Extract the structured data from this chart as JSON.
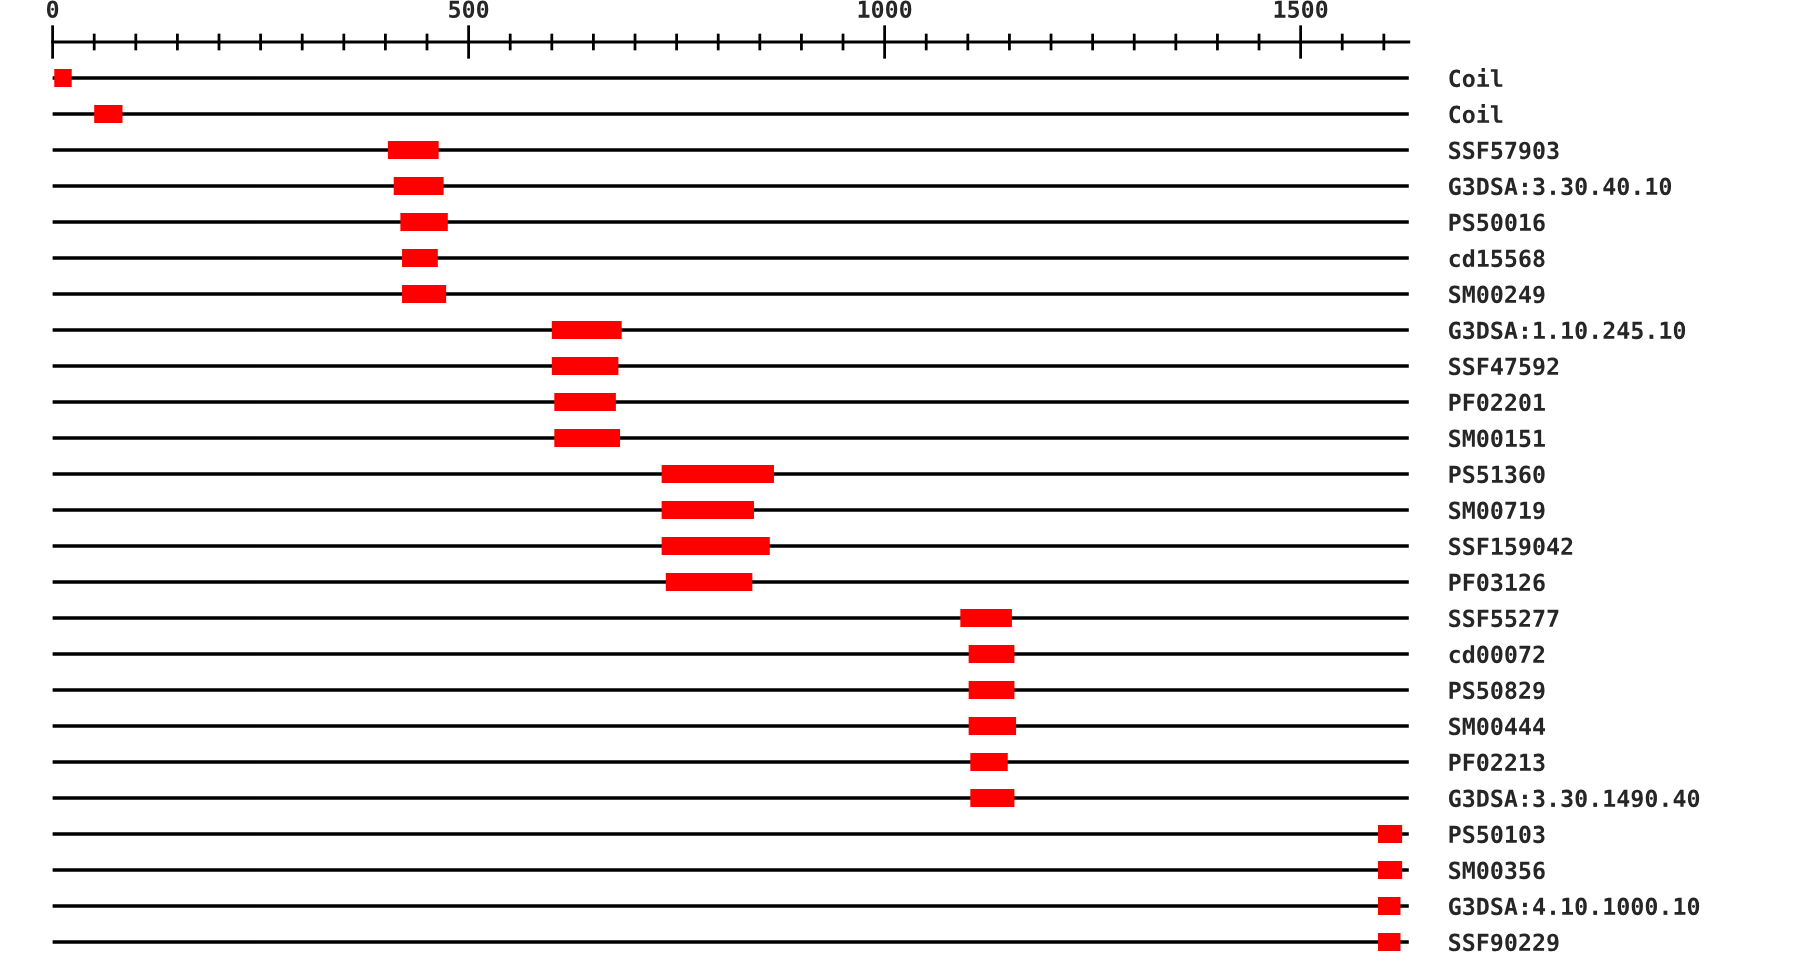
{
  "chart_data": {
    "type": "bar",
    "orientation": "horizontal",
    "categories": [
      "Coil",
      "Coil",
      "SSF57903",
      "G3DSA:3.30.40.10",
      "PS50016",
      "cd15568",
      "SM00249",
      "G3DSA:1.10.245.10",
      "SSF47592",
      "PF02201",
      "SM00151",
      "PS51360",
      "SM00719",
      "SSF159042",
      "PF03126",
      "SSF55277",
      "cd00072",
      "PS50829",
      "SM00444",
      "PF02213",
      "G3DSA:3.30.1490.40",
      "PS50103",
      "SM00356",
      "G3DSA:4.10.1000.10",
      "SSF90229"
    ],
    "base": [
      2,
      50,
      403,
      410,
      418,
      420,
      420,
      600,
      600,
      603,
      603,
      732,
      732,
      732,
      737,
      1091,
      1101,
      1101,
      1101,
      1103,
      1103,
      1593,
      1593,
      1593,
      1593
    ],
    "values": [
      21,
      34,
      61,
      60,
      57,
      43,
      53,
      84,
      80,
      74,
      79,
      135,
      111,
      130,
      104,
      62,
      55,
      55,
      57,
      45,
      53,
      29,
      29,
      27,
      27
    ],
    "color": "#ff0000",
    "xlim": [
      0,
      1630
    ],
    "xticks": [
      0,
      {
        "value": 50,
        "label": null
      },
      {
        "value": 100,
        "label": null
      },
      {
        "value": 150,
        "label": null
      },
      {
        "value": 200,
        "label": null
      },
      {
        "value": 250,
        "label": null
      },
      {
        "value": 300,
        "label": null
      },
      {
        "value": 350,
        "label": null
      },
      {
        "value": 400,
        "label": null
      },
      {
        "value": 450,
        "label": null
      },
      500,
      {
        "value": 550,
        "label": null
      },
      {
        "value": 600,
        "label": null
      },
      {
        "value": 650,
        "label": null
      },
      {
        "value": 700,
        "label": null
      },
      {
        "value": 750,
        "label": null
      },
      {
        "value": 800,
        "label": null
      },
      {
        "value": 850,
        "label": null
      },
      {
        "value": 900,
        "label": null
      },
      {
        "value": 950,
        "label": null
      },
      1000,
      {
        "value": 1050,
        "label": null
      },
      {
        "value": 1100,
        "label": null
      },
      {
        "value": 1150,
        "label": null
      },
      {
        "value": 1200,
        "label": null
      },
      {
        "value": 1250,
        "label": null
      },
      {
        "value": 1300,
        "label": null
      },
      {
        "value": 1350,
        "label": null
      },
      {
        "value": 1400,
        "label": null
      },
      {
        "value": 1450,
        "label": null
      },
      1500,
      {
        "value": 1550,
        "label": null
      },
      {
        "value": 1600,
        "label": null
      }
    ],
    "grid": "y"
  }
}
